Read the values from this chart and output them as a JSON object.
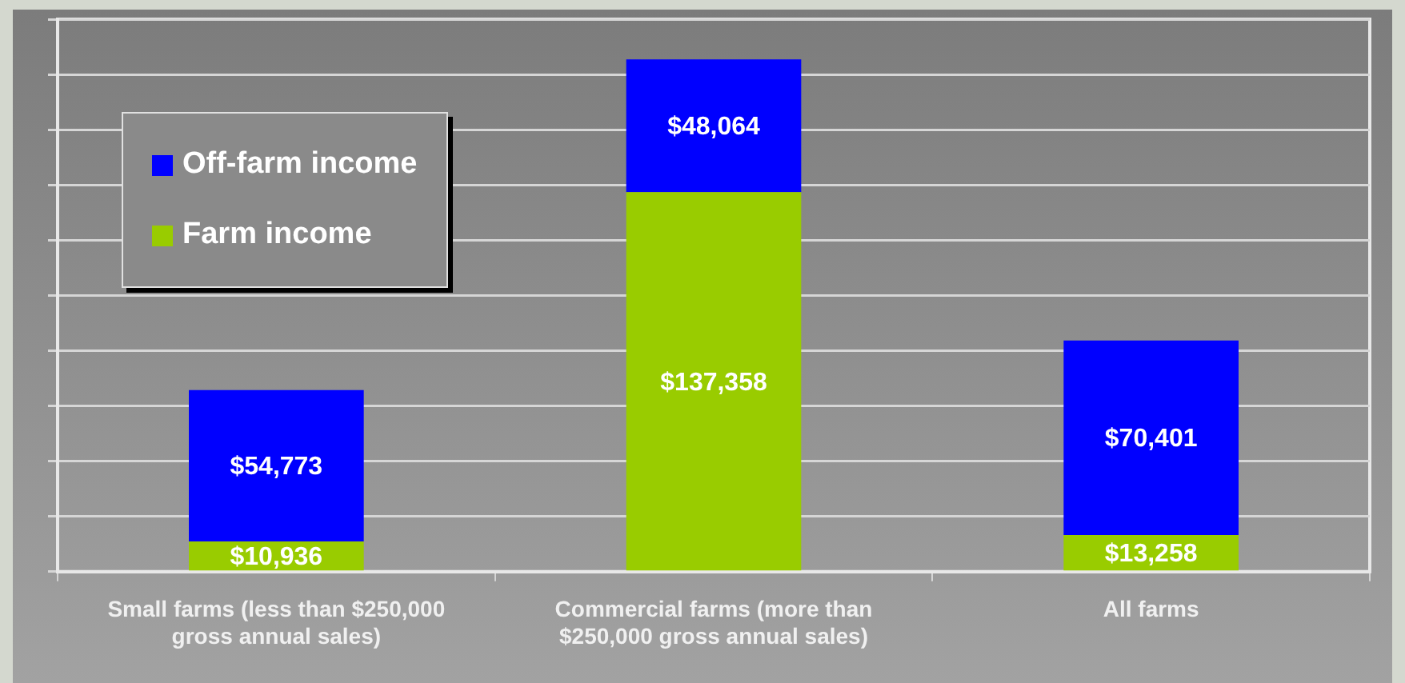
{
  "chart_data": {
    "type": "bar",
    "stacked": true,
    "categories": [
      "Small farms (less than $250,000 gross annual sales)",
      "Commercial farms (more than $250,000 gross annual sales)",
      "All farms"
    ],
    "series": [
      {
        "name": "Farm income",
        "color": "#99cc00",
        "values": [
          10936,
          137358,
          13258
        ],
        "value_labels": [
          "$10,936",
          "$137,358",
          "$13,258"
        ]
      },
      {
        "name": "Off-farm income",
        "color": "#0000ff",
        "values": [
          54773,
          48064,
          70401
        ],
        "value_labels": [
          "$54,773",
          "$48,064",
          "$70,401"
        ]
      }
    ],
    "tick_labels": "x",
    "grid": "y",
    "legend": "top left"
  }
}
